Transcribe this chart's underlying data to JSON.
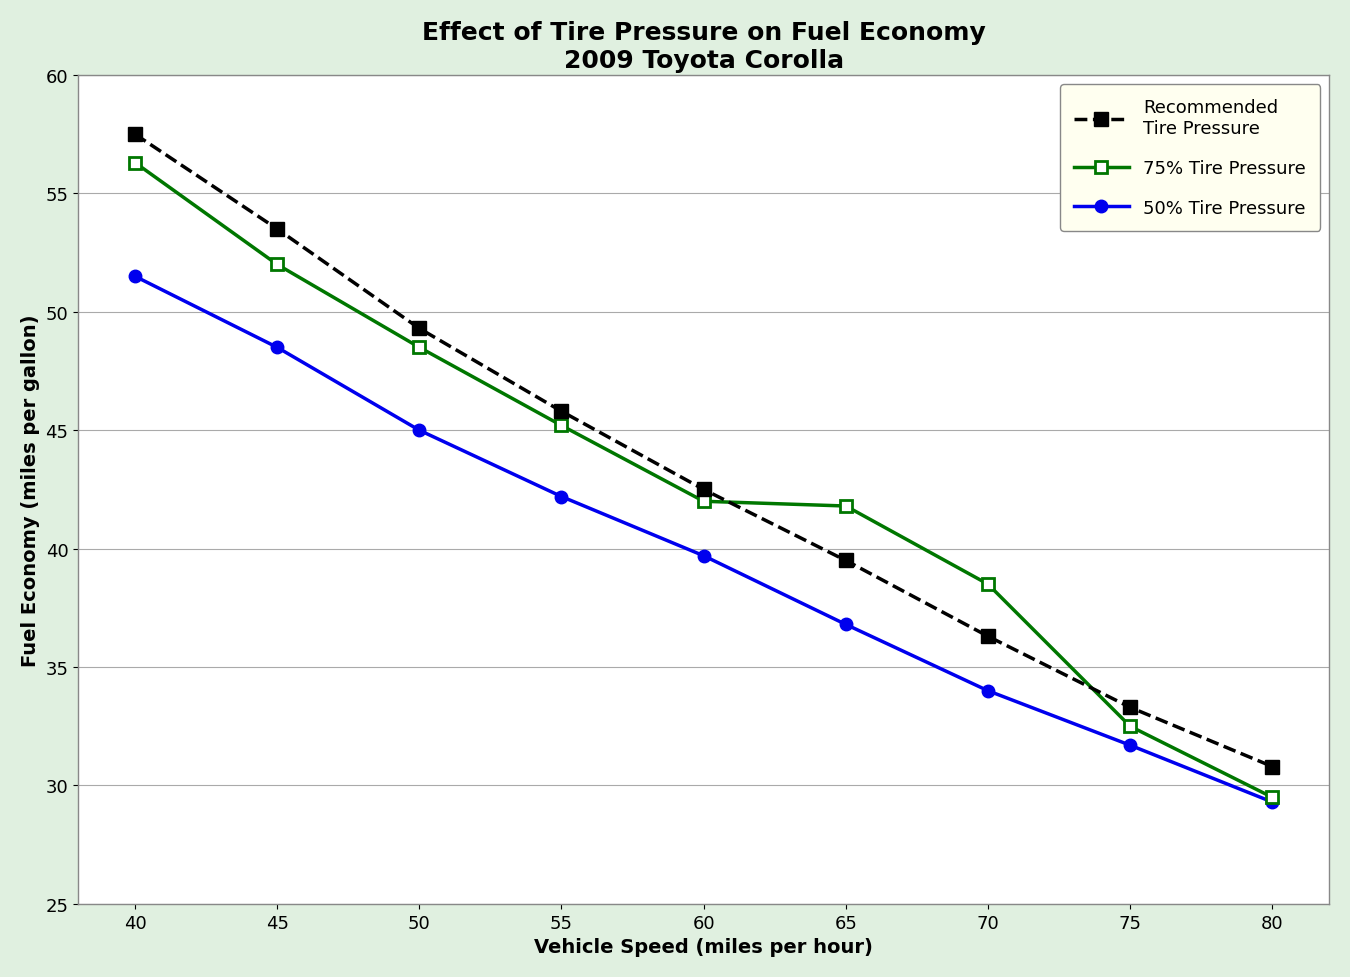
{
  "title": "Effect of Tire Pressure on Fuel Economy\n2009 Toyota Corolla",
  "xlabel": "Vehicle Speed (miles per hour)",
  "ylabel": "Fuel Economy (miles per gallon)",
  "x": [
    40,
    45,
    50,
    55,
    60,
    65,
    70,
    75,
    80
  ],
  "recommended": [
    57.5,
    53.5,
    49.3,
    45.8,
    42.5,
    39.5,
    36.3,
    33.3,
    30.8
  ],
  "pct75": [
    56.3,
    52.0,
    48.5,
    45.2,
    42.0,
    41.8,
    38.5,
    32.5,
    29.5
  ],
  "pct50": [
    51.5,
    48.5,
    45.0,
    42.2,
    39.7,
    36.8,
    34.0,
    31.7,
    29.3
  ],
  "recommended_color": "#000000",
  "pct75_color": "#007700",
  "pct50_color": "#0000EE",
  "bg_color_outer": "#e0f0e0",
  "bg_color_plot": "#ffffff",
  "legend_bg": "#fffff0",
  "xlim": [
    38,
    82
  ],
  "ylim": [
    25,
    60
  ],
  "xticks": [
    40,
    45,
    50,
    55,
    60,
    65,
    70,
    75,
    80
  ],
  "yticks": [
    25,
    30,
    35,
    40,
    45,
    50,
    55,
    60
  ],
  "title_fontsize": 18,
  "label_fontsize": 14,
  "tick_fontsize": 13,
  "legend_fontsize": 13
}
